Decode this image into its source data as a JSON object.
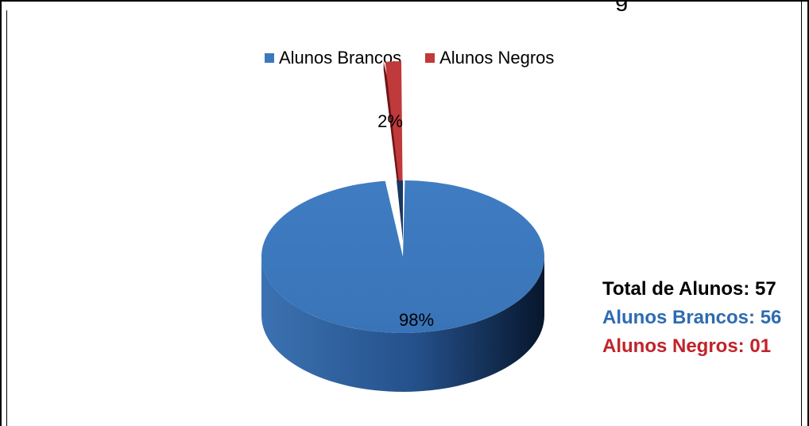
{
  "title_fragment": "g",
  "colors": {
    "brancos": "#3c78be",
    "brancos_side_light": "#3a6fae",
    "brancos_side_dark": "#0a1a30",
    "negros": "#c0393b",
    "negros_side": "#6e1416",
    "stats_total": "#000000",
    "stats_brancos": "#2e6bb0",
    "stats_negros": "#c0232a"
  },
  "chart_data": {
    "type": "pie",
    "title": "",
    "legend_position": "top",
    "categories": [
      "Alunos Brancos",
      "Alunos Negros"
    ],
    "values": [
      98,
      2
    ],
    "data_labels": [
      "98%",
      "2%"
    ],
    "exploded": [
      "",
      "Alunos Negros"
    ],
    "style": "3d"
  },
  "stats": {
    "total": "Total de Alunos: 57",
    "brancos": "Alunos Brancos: 56",
    "negros": "Alunos Negros: 01"
  }
}
